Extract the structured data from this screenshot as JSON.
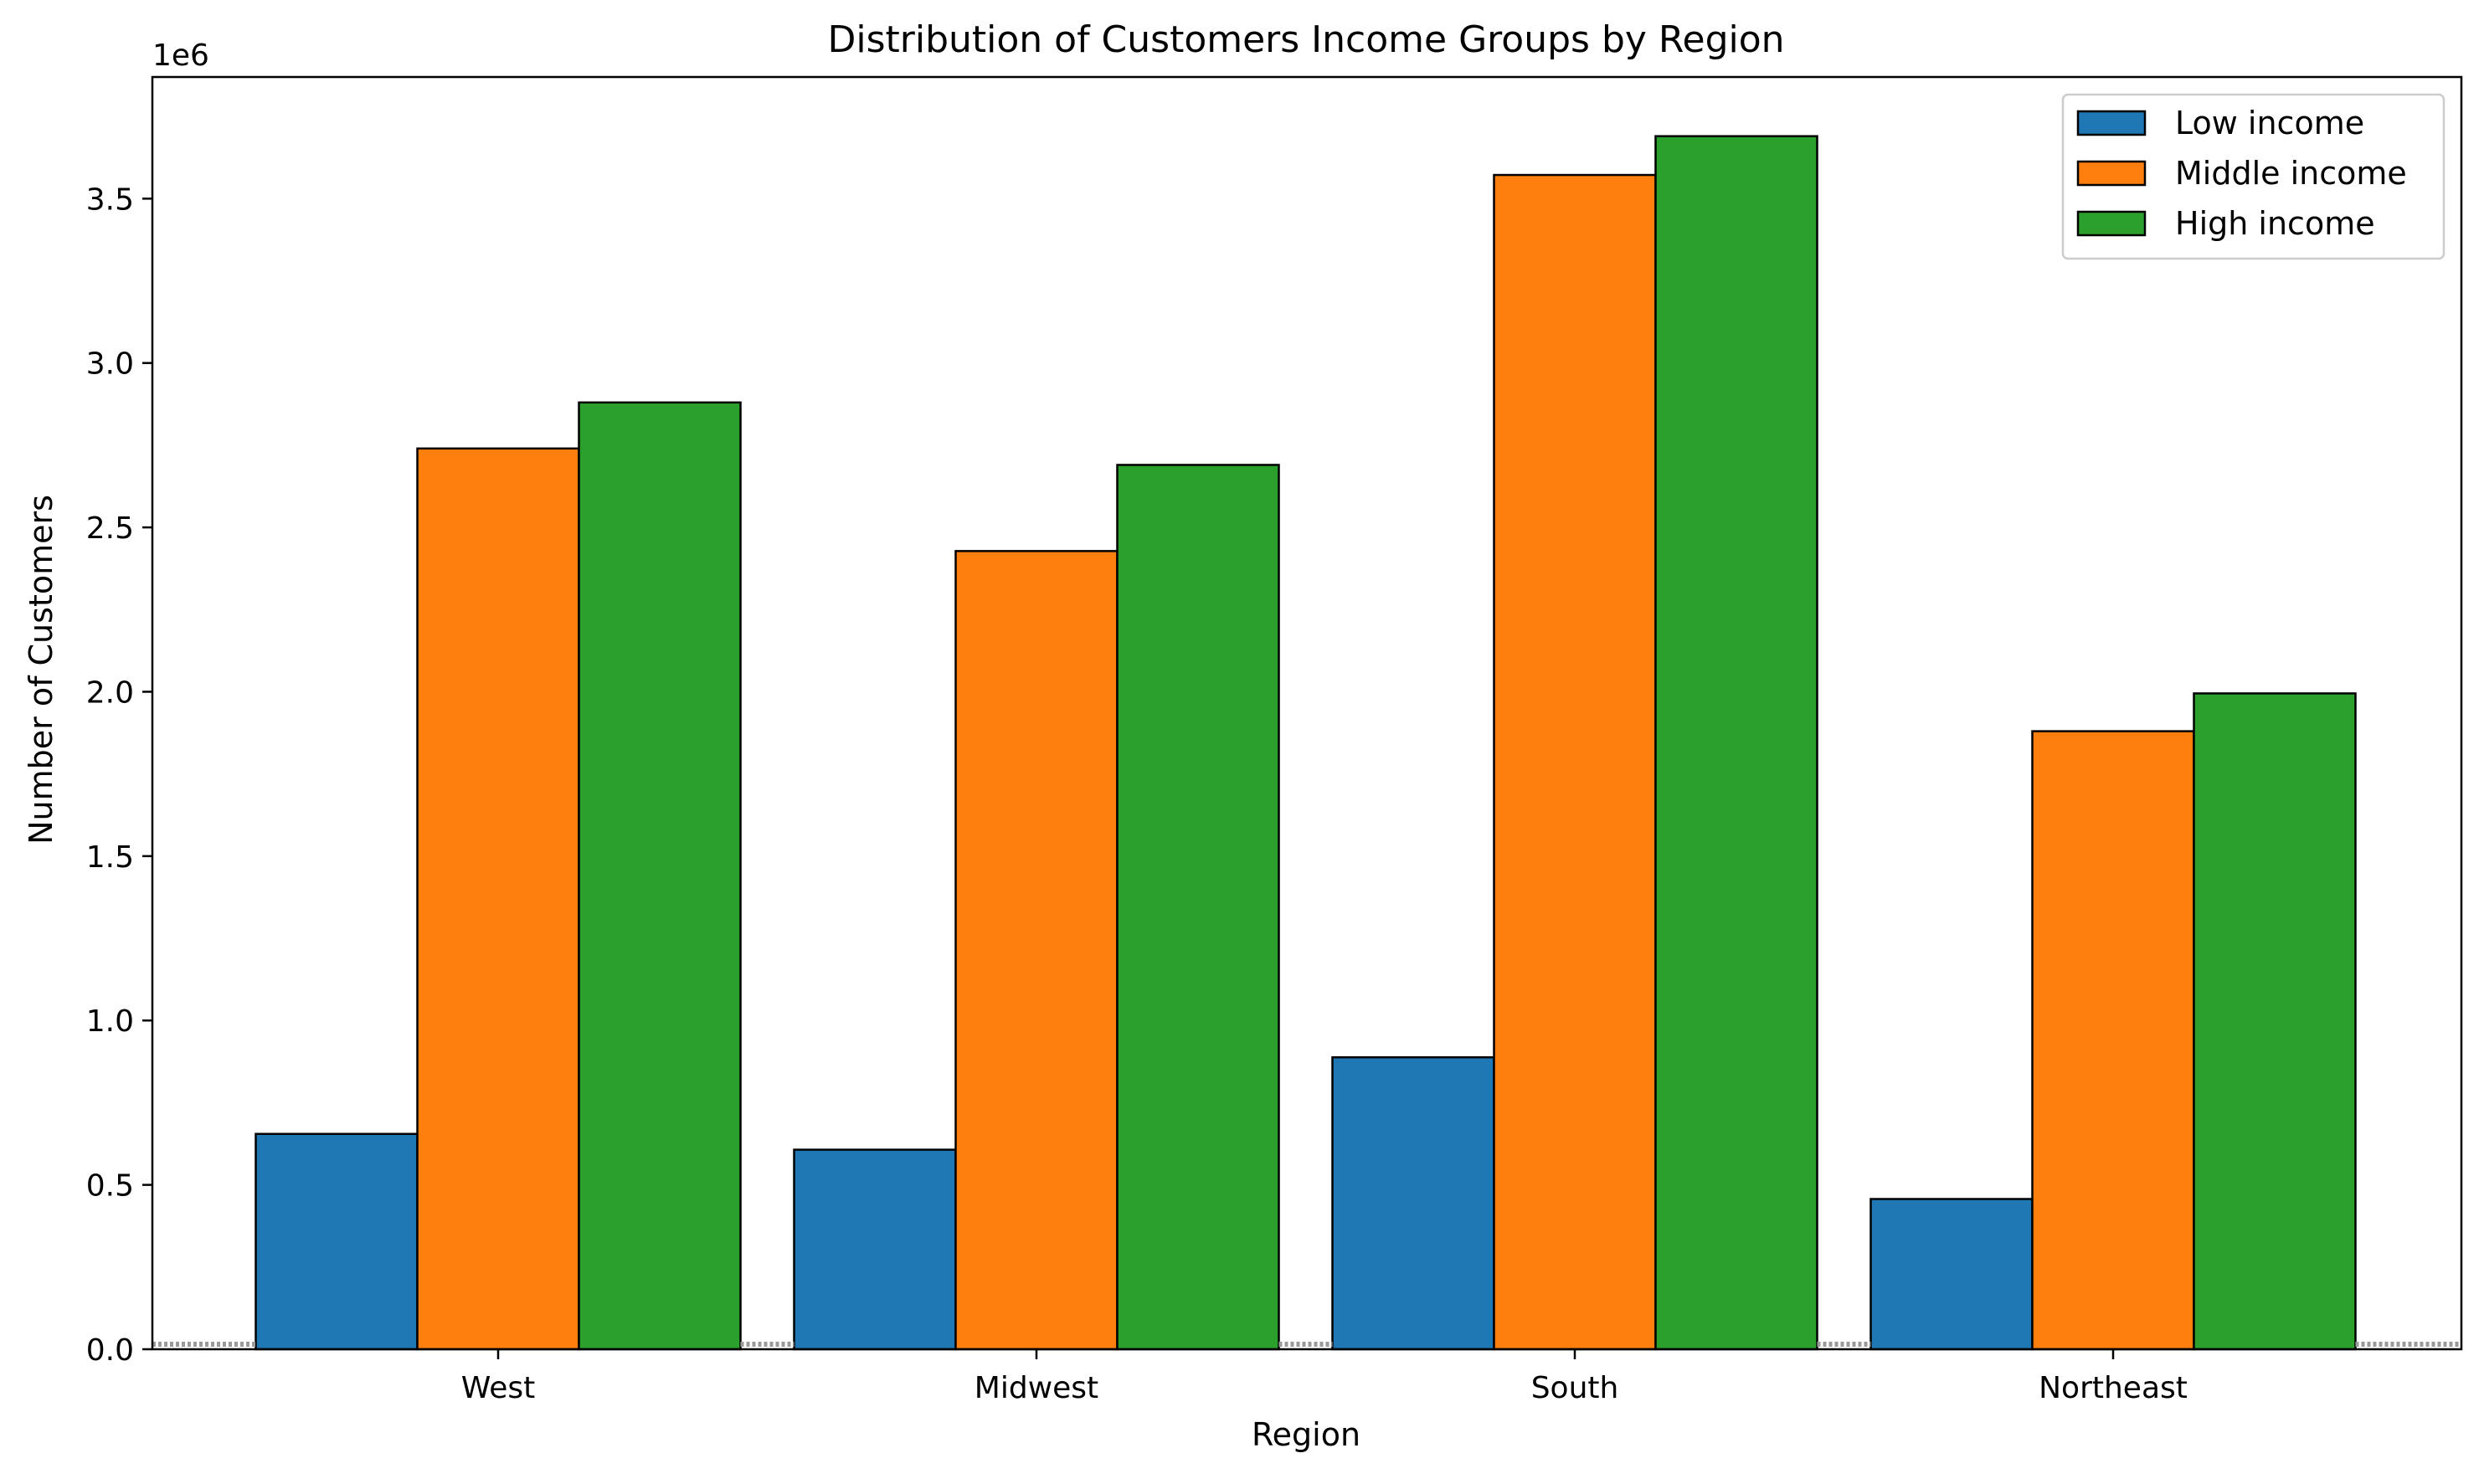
{
  "chart_data": {
    "type": "bar",
    "title": "Distribution of Customers Income Groups by Region",
    "xlabel": "Region",
    "ylabel": "Number of Customers",
    "y_offset_label": "1e6",
    "categories": [
      "West",
      "Midwest",
      "South",
      "Northeast"
    ],
    "series": [
      {
        "name": "Low income",
        "color": "#1f77b4",
        "values": [
          655000,
          607000,
          888000,
          457000
        ]
      },
      {
        "name": "Middle income",
        "color": "#ff7f0e",
        "values": [
          2740000,
          2428000,
          3572000,
          1880000
        ]
      },
      {
        "name": "High income",
        "color": "#2ca02c",
        "values": [
          2880000,
          2690000,
          3690000,
          1995000
        ]
      }
    ],
    "ylim": [
      0,
      3870000
    ],
    "yticks": [
      {
        "value": 0,
        "label": "0.0"
      },
      {
        "value": 500000,
        "label": "0.5"
      },
      {
        "value": 1000000,
        "label": "1.0"
      },
      {
        "value": 1500000,
        "label": "1.5"
      },
      {
        "value": 2000000,
        "label": "2.0"
      },
      {
        "value": 2500000,
        "label": "2.5"
      },
      {
        "value": 3000000,
        "label": "3.0"
      },
      {
        "value": 3500000,
        "label": "3.5"
      }
    ],
    "legend_position": "top-right",
    "grid": false,
    "edge_color": "#000000",
    "baseline_color": "#9a9a9a"
  }
}
